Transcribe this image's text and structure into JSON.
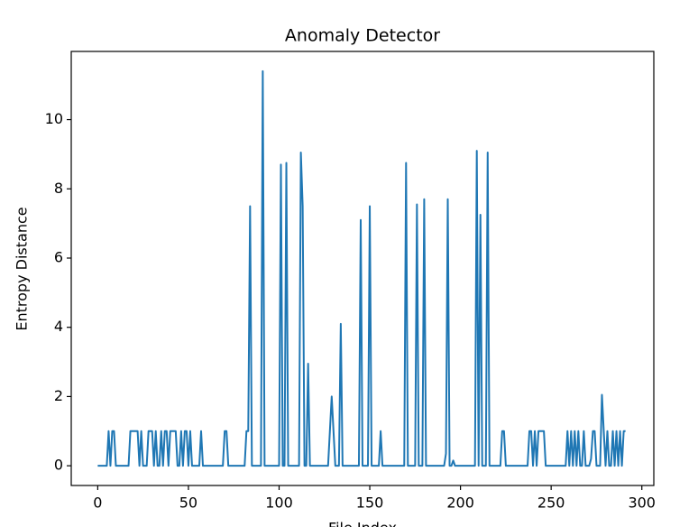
{
  "chart_data": {
    "type": "line",
    "title": "Anomaly Detector",
    "x_label": "File Index",
    "y_label": "Entropy Distance",
    "xlim": [
      -14.6,
      306.6
    ],
    "ylim": [
      -0.57,
      11.97
    ],
    "xticks": [
      0,
      50,
      100,
      150,
      200,
      250,
      300
    ],
    "yticks": [
      0,
      2,
      4,
      6,
      8,
      10
    ],
    "x": [
      0,
      1,
      2,
      3,
      4,
      5,
      6,
      7,
      8,
      9,
      10,
      11,
      12,
      13,
      14,
      15,
      16,
      17,
      18,
      19,
      20,
      21,
      22,
      23,
      24,
      25,
      26,
      27,
      28,
      29,
      30,
      31,
      32,
      33,
      34,
      35,
      36,
      37,
      38,
      39,
      40,
      41,
      42,
      43,
      44,
      45,
      46,
      47,
      48,
      49,
      50,
      51,
      52,
      53,
      54,
      55,
      56,
      57,
      58,
      59,
      60,
      61,
      62,
      63,
      64,
      65,
      66,
      67,
      68,
      69,
      70,
      71,
      72,
      73,
      74,
      75,
      76,
      77,
      78,
      79,
      80,
      81,
      82,
      83,
      84,
      85,
      86,
      87,
      88,
      89,
      90,
      91,
      92,
      93,
      94,
      95,
      96,
      97,
      98,
      99,
      100,
      101,
      102,
      103,
      104,
      105,
      106,
      107,
      108,
      109,
      110,
      111,
      112,
      113,
      114,
      115,
      116,
      117,
      118,
      119,
      120,
      121,
      122,
      123,
      124,
      125,
      126,
      127,
      128,
      129,
      130,
      131,
      132,
      133,
      134,
      135,
      136,
      137,
      138,
      139,
      140,
      141,
      142,
      143,
      144,
      145,
      146,
      147,
      148,
      149,
      150,
      151,
      152,
      153,
      154,
      155,
      156,
      157,
      158,
      159,
      160,
      161,
      162,
      163,
      164,
      165,
      166,
      167,
      168,
      169,
      170,
      171,
      172,
      173,
      174,
      175,
      176,
      177,
      178,
      179,
      180,
      181,
      182,
      183,
      184,
      185,
      186,
      187,
      188,
      189,
      190,
      191,
      192,
      193,
      194,
      195,
      196,
      197,
      198,
      199,
      200,
      201,
      202,
      203,
      204,
      205,
      206,
      207,
      208,
      209,
      210,
      211,
      212,
      213,
      214,
      215,
      216,
      217,
      218,
      219,
      220,
      221,
      222,
      223,
      224,
      225,
      226,
      227,
      228,
      229,
      230,
      231,
      232,
      233,
      234,
      235,
      236,
      237,
      238,
      239,
      240,
      241,
      242,
      243,
      244,
      245,
      246,
      247,
      248,
      249,
      250,
      251,
      252,
      253,
      254,
      255,
      256,
      257,
      258,
      259,
      260,
      261,
      262,
      263,
      264,
      265,
      266,
      267,
      268,
      269,
      270,
      271,
      272,
      273,
      274,
      275,
      276,
      277,
      278,
      279,
      280,
      281,
      282,
      283,
      284,
      285,
      286,
      287,
      288,
      289,
      290,
      291
    ],
    "series": [
      {
        "name": "Entropy Distance",
        "color": "#1f77b4",
        "values": [
          0,
          0,
          0,
          0,
          0,
          0,
          1,
          0,
          1,
          1,
          0,
          0,
          0,
          0,
          0,
          0,
          0,
          0,
          1,
          1,
          1,
          1,
          1,
          0,
          1,
          0,
          0,
          0,
          1,
          1,
          1,
          0,
          1,
          0,
          0,
          1,
          0,
          1,
          1,
          0,
          1,
          1,
          1,
          1,
          0,
          0,
          1,
          0,
          1,
          1,
          0,
          1,
          0,
          0,
          0,
          0,
          0,
          1,
          0,
          0,
          0,
          0,
          0,
          0,
          0,
          0,
          0,
          0,
          0,
          0,
          1,
          1,
          0,
          0,
          0,
          0,
          0,
          0,
          0,
          0,
          0,
          0,
          1,
          1,
          7.5,
          0,
          0,
          0,
          0,
          0,
          0,
          11.4,
          0,
          0,
          0,
          0,
          0,
          0,
          0,
          0,
          0,
          8.7,
          0,
          0,
          8.75,
          0,
          0,
          0,
          0,
          0,
          0,
          0,
          9.05,
          7.5,
          0,
          0,
          2.95,
          0,
          0,
          0,
          0,
          0,
          0,
          0,
          0,
          0,
          0,
          0,
          1,
          2,
          1,
          0,
          0,
          0,
          4.1,
          0,
          0,
          0,
          0,
          0,
          0,
          0,
          0,
          0,
          0,
          7.1,
          0,
          0,
          0,
          0,
          7.5,
          0,
          0,
          0,
          0,
          0,
          1,
          0,
          0,
          0,
          0,
          0,
          0,
          0,
          0,
          0,
          0,
          0,
          0,
          0,
          8.75,
          0,
          0,
          0,
          0,
          0,
          7.55,
          0,
          0,
          0,
          7.7,
          0,
          0,
          0,
          0,
          0,
          0,
          0,
          0,
          0,
          0,
          0,
          0.35,
          7.7,
          0,
          0,
          0.15,
          0,
          0,
          0,
          0,
          0,
          0,
          0,
          0,
          0,
          0,
          0,
          0,
          9.1,
          0,
          7.25,
          0,
          0,
          0,
          9.05,
          0,
          0,
          0,
          0,
          0,
          0,
          0,
          1,
          1,
          0,
          0,
          0,
          0,
          0,
          0,
          0,
          0,
          0,
          0,
          0,
          0,
          0,
          1,
          1,
          0,
          1,
          0,
          1,
          1,
          1,
          1,
          0,
          0,
          0,
          0,
          0,
          0,
          0,
          0,
          0,
          0,
          0,
          0,
          1,
          0,
          1,
          0,
          1,
          0,
          1,
          0,
          0,
          1,
          0,
          0,
          0,
          0.2,
          1,
          1,
          0,
          0,
          0,
          2.05,
          1,
          0,
          1,
          0,
          0,
          1,
          0,
          1,
          0,
          1,
          0,
          1,
          1
        ]
      }
    ]
  }
}
